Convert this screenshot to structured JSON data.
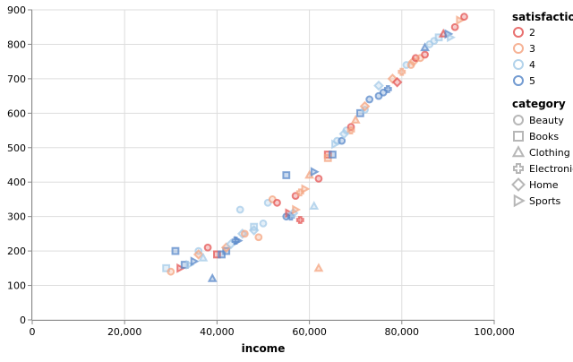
{
  "chart_data": {
    "type": "scatter",
    "title": "",
    "xlabel": "income",
    "ylabel": "",
    "xlim": [
      0,
      100000
    ],
    "ylim": [
      0,
      900
    ],
    "x_ticks": [
      0,
      20000,
      40000,
      60000,
      80000,
      100000
    ],
    "x_tick_labels": [
      "0",
      "20,000",
      "40,000",
      "60,000",
      "80,000",
      "100,000"
    ],
    "y_ticks": [
      0,
      100,
      200,
      300,
      400,
      500,
      600,
      700,
      800,
      900
    ],
    "y_tick_labels": [
      "0",
      "100",
      "200",
      "300",
      "400",
      "500",
      "600",
      "700",
      "800",
      "900"
    ],
    "grid": true,
    "legend_placement": "right",
    "color_legend": {
      "title": "satisfaction",
      "items": [
        {
          "label": "2",
          "color": "#e45756"
        },
        {
          "label": "3",
          "color": "#f4a582"
        },
        {
          "label": "4",
          "color": "#a6cbe8"
        },
        {
          "label": "5",
          "color": "#5b8ac9"
        }
      ]
    },
    "shape_legend": {
      "title": "category",
      "items": [
        {
          "label": "Beauty",
          "shape": "circle"
        },
        {
          "label": "Books",
          "shape": "square"
        },
        {
          "label": "Clothing",
          "shape": "triangle-up"
        },
        {
          "label": "Electronics",
          "shape": "cross"
        },
        {
          "label": "Home",
          "shape": "diamond"
        },
        {
          "label": "Sports",
          "shape": "triangle-right"
        }
      ]
    },
    "points": [
      {
        "x": 29000,
        "y": 150,
        "satisfaction": "4",
        "category": "Books"
      },
      {
        "x": 30000,
        "y": 140,
        "satisfaction": "3",
        "category": "Beauty"
      },
      {
        "x": 31000,
        "y": 200,
        "satisfaction": "5",
        "category": "Books"
      },
      {
        "x": 32000,
        "y": 150,
        "satisfaction": "2",
        "category": "Sports"
      },
      {
        "x": 33000,
        "y": 160,
        "satisfaction": "5",
        "category": "Books"
      },
      {
        "x": 34000,
        "y": 160,
        "satisfaction": "4",
        "category": "Sports"
      },
      {
        "x": 35000,
        "y": 170,
        "satisfaction": "5",
        "category": "Sports"
      },
      {
        "x": 36000,
        "y": 200,
        "satisfaction": "4",
        "category": "Beauty"
      },
      {
        "x": 36000,
        "y": 190,
        "satisfaction": "3",
        "category": "Home"
      },
      {
        "x": 37000,
        "y": 180,
        "satisfaction": "4",
        "category": "Clothing"
      },
      {
        "x": 38000,
        "y": 210,
        "satisfaction": "2",
        "category": "Beauty"
      },
      {
        "x": 39000,
        "y": 120,
        "satisfaction": "5",
        "category": "Clothing"
      },
      {
        "x": 40000,
        "y": 190,
        "satisfaction": "2",
        "category": "Books"
      },
      {
        "x": 41000,
        "y": 190,
        "satisfaction": "5",
        "category": "Books"
      },
      {
        "x": 42000,
        "y": 200,
        "satisfaction": "5",
        "category": "Books"
      },
      {
        "x": 42000,
        "y": 210,
        "satisfaction": "3",
        "category": "Home"
      },
      {
        "x": 43000,
        "y": 220,
        "satisfaction": "4",
        "category": "Home"
      },
      {
        "x": 44000,
        "y": 230,
        "satisfaction": "5",
        "category": "Electronics"
      },
      {
        "x": 44500,
        "y": 230,
        "satisfaction": "5",
        "category": "Sports"
      },
      {
        "x": 45000,
        "y": 320,
        "satisfaction": "4",
        "category": "Beauty"
      },
      {
        "x": 45500,
        "y": 250,
        "satisfaction": "4",
        "category": "Home"
      },
      {
        "x": 46000,
        "y": 250,
        "satisfaction": "3",
        "category": "Beauty"
      },
      {
        "x": 48000,
        "y": 260,
        "satisfaction": "4",
        "category": "Home"
      },
      {
        "x": 48000,
        "y": 270,
        "satisfaction": "4",
        "category": "Books"
      },
      {
        "x": 49000,
        "y": 240,
        "satisfaction": "3",
        "category": "Beauty"
      },
      {
        "x": 50000,
        "y": 280,
        "satisfaction": "4",
        "category": "Beauty"
      },
      {
        "x": 51000,
        "y": 340,
        "satisfaction": "4",
        "category": "Beauty"
      },
      {
        "x": 52000,
        "y": 350,
        "satisfaction": "3",
        "category": "Beauty"
      },
      {
        "x": 53000,
        "y": 340,
        "satisfaction": "2",
        "category": "Beauty"
      },
      {
        "x": 55000,
        "y": 420,
        "satisfaction": "5",
        "category": "Books"
      },
      {
        "x": 55000,
        "y": 300,
        "satisfaction": "5",
        "category": "Beauty"
      },
      {
        "x": 55500,
        "y": 310,
        "satisfaction": "2",
        "category": "Sports"
      },
      {
        "x": 56000,
        "y": 300,
        "satisfaction": "5",
        "category": "Electronics"
      },
      {
        "x": 56500,
        "y": 310,
        "satisfaction": "4",
        "category": "Home"
      },
      {
        "x": 57000,
        "y": 320,
        "satisfaction": "3",
        "category": "Sports"
      },
      {
        "x": 57000,
        "y": 360,
        "satisfaction": "2",
        "category": "Beauty"
      },
      {
        "x": 58000,
        "y": 290,
        "satisfaction": "2",
        "category": "Electronics"
      },
      {
        "x": 58000,
        "y": 370,
        "satisfaction": "3",
        "category": "Electronics"
      },
      {
        "x": 59000,
        "y": 380,
        "satisfaction": "3",
        "category": "Sports"
      },
      {
        "x": 60000,
        "y": 420,
        "satisfaction": "3",
        "category": "Clothing"
      },
      {
        "x": 61000,
        "y": 430,
        "satisfaction": "5",
        "category": "Sports"
      },
      {
        "x": 61000,
        "y": 330,
        "satisfaction": "4",
        "category": "Clothing"
      },
      {
        "x": 62000,
        "y": 410,
        "satisfaction": "2",
        "category": "Beauty"
      },
      {
        "x": 62000,
        "y": 150,
        "satisfaction": "3",
        "category": "Clothing"
      },
      {
        "x": 64000,
        "y": 480,
        "satisfaction": "2",
        "category": "Books"
      },
      {
        "x": 64000,
        "y": 470,
        "satisfaction": "3",
        "category": "Books"
      },
      {
        "x": 65000,
        "y": 480,
        "satisfaction": "5",
        "category": "Books"
      },
      {
        "x": 65500,
        "y": 510,
        "satisfaction": "4",
        "category": "Sports"
      },
      {
        "x": 66000,
        "y": 520,
        "satisfaction": "4",
        "category": "Beauty"
      },
      {
        "x": 67000,
        "y": 520,
        "satisfaction": "5",
        "category": "Beauty"
      },
      {
        "x": 67500,
        "y": 540,
        "satisfaction": "4",
        "category": "Home"
      },
      {
        "x": 68000,
        "y": 550,
        "satisfaction": "4",
        "category": "Beauty"
      },
      {
        "x": 69000,
        "y": 560,
        "satisfaction": "2",
        "category": "Beauty"
      },
      {
        "x": 69000,
        "y": 550,
        "satisfaction": "3",
        "category": "Electronics"
      },
      {
        "x": 70000,
        "y": 580,
        "satisfaction": "3",
        "category": "Clothing"
      },
      {
        "x": 71000,
        "y": 600,
        "satisfaction": "5",
        "category": "Books"
      },
      {
        "x": 72000,
        "y": 610,
        "satisfaction": "4",
        "category": "Beauty"
      },
      {
        "x": 72000,
        "y": 620,
        "satisfaction": "3",
        "category": "Home"
      },
      {
        "x": 73000,
        "y": 640,
        "satisfaction": "5",
        "category": "Beauty"
      },
      {
        "x": 75000,
        "y": 650,
        "satisfaction": "5",
        "category": "Beauty"
      },
      {
        "x": 75000,
        "y": 680,
        "satisfaction": "4",
        "category": "Home"
      },
      {
        "x": 76000,
        "y": 660,
        "satisfaction": "5",
        "category": "Beauty"
      },
      {
        "x": 77000,
        "y": 670,
        "satisfaction": "5",
        "category": "Electronics"
      },
      {
        "x": 78000,
        "y": 700,
        "satisfaction": "3",
        "category": "Home"
      },
      {
        "x": 79000,
        "y": 690,
        "satisfaction": "2",
        "category": "Home"
      },
      {
        "x": 80000,
        "y": 720,
        "satisfaction": "3",
        "category": "Electronics"
      },
      {
        "x": 81000,
        "y": 740,
        "satisfaction": "4",
        "category": "Beauty"
      },
      {
        "x": 82000,
        "y": 740,
        "satisfaction": "3",
        "category": "Beauty"
      },
      {
        "x": 82500,
        "y": 750,
        "satisfaction": "3",
        "category": "Home"
      },
      {
        "x": 83000,
        "y": 760,
        "satisfaction": "2",
        "category": "Beauty"
      },
      {
        "x": 84000,
        "y": 760,
        "satisfaction": "3",
        "category": "Beauty"
      },
      {
        "x": 85000,
        "y": 770,
        "satisfaction": "2",
        "category": "Beauty"
      },
      {
        "x": 85000,
        "y": 790,
        "satisfaction": "5",
        "category": "Clothing"
      },
      {
        "x": 86000,
        "y": 800,
        "satisfaction": "4",
        "category": "Beauty"
      },
      {
        "x": 87000,
        "y": 810,
        "satisfaction": "4",
        "category": "Beauty"
      },
      {
        "x": 88000,
        "y": 820,
        "satisfaction": "4",
        "category": "Books"
      },
      {
        "x": 89000,
        "y": 830,
        "satisfaction": "2",
        "category": "Clothing"
      },
      {
        "x": 90000,
        "y": 830,
        "satisfaction": "5",
        "category": "Sports"
      },
      {
        "x": 90500,
        "y": 820,
        "satisfaction": "4",
        "category": "Sports"
      },
      {
        "x": 91500,
        "y": 850,
        "satisfaction": "2",
        "category": "Beauty"
      },
      {
        "x": 92500,
        "y": 870,
        "satisfaction": "3",
        "category": "Sports"
      },
      {
        "x": 93500,
        "y": 880,
        "satisfaction": "2",
        "category": "Beauty"
      }
    ]
  }
}
